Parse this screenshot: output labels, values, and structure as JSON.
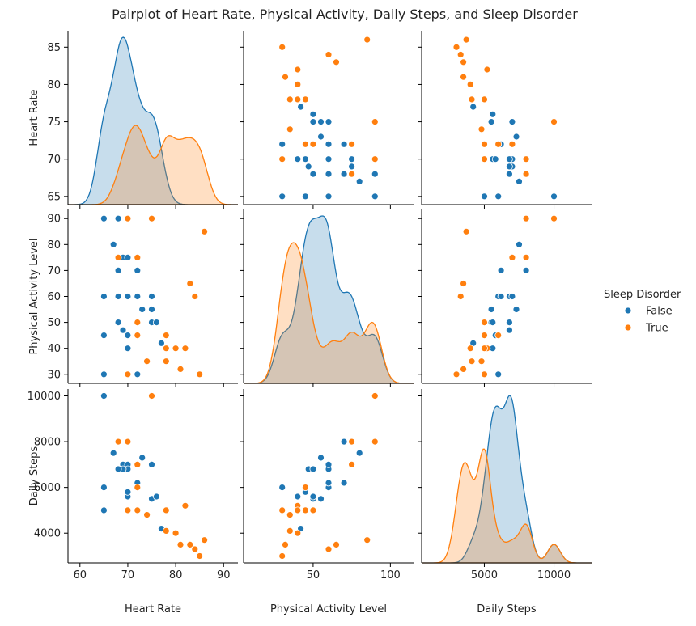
{
  "chart_data": {
    "type": "pairplot",
    "title": "Pairplot of Heart Rate, Physical Activity, Daily Steps, and Sleep Disorder",
    "variables": [
      "Heart Rate",
      "Physical Activity Level",
      "Daily Steps"
    ],
    "ticks": [
      [
        60,
        70,
        80,
        90
      ],
      [
        50,
        100
      ],
      [
        5000,
        10000
      ]
    ],
    "yticks": [
      [
        65,
        70,
        75,
        80,
        85
      ],
      [
        30,
        40,
        50,
        60,
        70,
        80,
        90
      ],
      [
        4000,
        6000,
        8000,
        10000
      ]
    ],
    "axis_ranges": [
      [
        57.5,
        93
      ],
      [
        5,
        115
      ],
      [
        500,
        12700
      ]
    ],
    "axis_ranges_y": [
      [
        63.9,
        87.2
      ],
      [
        26.5,
        93.5
      ],
      [
        2700,
        10300
      ]
    ],
    "legend": {
      "title": "Sleep Disorder",
      "position": "center-right"
    },
    "series": [
      {
        "name": "False",
        "color": "#1f77b4",
        "points": [
          [
            65,
            90,
            10000
          ],
          [
            65,
            60,
            6000
          ],
          [
            65,
            45,
            5000
          ],
          [
            65,
            30,
            5000
          ],
          [
            68,
            90,
            8000
          ],
          [
            68,
            70,
            8000
          ],
          [
            68,
            60,
            6800
          ],
          [
            69,
            75,
            7000
          ],
          [
            67,
            80,
            7500
          ],
          [
            70,
            75,
            7000
          ],
          [
            70,
            60,
            6800
          ],
          [
            72,
            70,
            6200
          ],
          [
            72,
            60,
            6200
          ],
          [
            73,
            55,
            7300
          ],
          [
            75,
            60,
            7000
          ],
          [
            75,
            55,
            5500
          ],
          [
            75,
            50,
            5500
          ],
          [
            76,
            50,
            5600
          ],
          [
            77,
            42,
            4200
          ],
          [
            72,
            30,
            6000
          ],
          [
            69,
            47,
            6800
          ],
          [
            70,
            40,
            5600
          ],
          [
            70,
            45,
            5800
          ],
          [
            68,
            50,
            6800
          ]
        ]
      },
      {
        "name": "True",
        "color": "#ff7f0e",
        "points": [
          [
            75,
            90,
            10000
          ],
          [
            70,
            90,
            8000
          ],
          [
            68,
            75,
            8000
          ],
          [
            72,
            75,
            7000
          ],
          [
            86,
            85,
            3700
          ],
          [
            83,
            65,
            3500
          ],
          [
            84,
            60,
            3300
          ],
          [
            72,
            45,
            6000
          ],
          [
            78,
            45,
            5000
          ],
          [
            80,
            40,
            4000
          ],
          [
            82,
            40,
            5200
          ],
          [
            74,
            35,
            4800
          ],
          [
            78,
            35,
            4100
          ],
          [
            81,
            32,
            3500
          ],
          [
            85,
            30,
            3000
          ],
          [
            70,
            30,
            5000
          ],
          [
            72,
            50,
            5000
          ],
          [
            78,
            40,
            5000
          ]
        ]
      }
    ]
  }
}
